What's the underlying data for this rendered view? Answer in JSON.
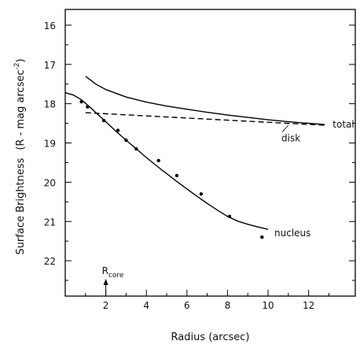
{
  "chart_data": {
    "type": "line",
    "title": "",
    "xlabel": "Radius (arcsec)",
    "ylabel": "Surface Brightness",
    "ylabel_units": "(R - mag arcsec",
    "ylabel_units_sup": "-2",
    "ylabel_units_close": ")",
    "xlim": [
      0,
      14.3
    ],
    "ylim": [
      22.9,
      15.6
    ],
    "y_inverted": true,
    "grid": false,
    "x_ticks": [
      2,
      4,
      6,
      8,
      10,
      12
    ],
    "x_minor_ticks": [
      1,
      3,
      5,
      7,
      9,
      11,
      13
    ],
    "y_ticks": [
      16,
      17,
      18,
      19,
      20,
      21,
      22
    ],
    "y_minor_ticks": [
      16.5,
      17.5,
      18.5,
      19.5,
      20.5,
      21.5,
      22.5
    ],
    "series": [
      {
        "name": "total",
        "style": "solid",
        "x": [
          1.0,
          1.5,
          2.0,
          3.0,
          4.0,
          5.0,
          6.0,
          7.0,
          8.0,
          9.0,
          10.0,
          11.0,
          12.0,
          12.8
        ],
        "y": [
          17.3,
          17.5,
          17.64,
          17.83,
          17.96,
          18.06,
          18.14,
          18.22,
          18.29,
          18.35,
          18.41,
          18.46,
          18.5,
          18.53
        ]
      },
      {
        "name": "disk",
        "style": "dashed",
        "x": [
          1.0,
          12.8
        ],
        "y": [
          18.23,
          18.55
        ]
      },
      {
        "name": "nucleus",
        "style": "solid",
        "x": [
          0.0,
          0.4,
          0.8,
          1.2,
          1.6,
          2.0,
          2.5,
          3.0,
          3.5,
          4.0,
          4.5,
          5.0,
          5.5,
          6.0,
          6.5,
          7.0,
          7.5,
          8.0,
          8.5,
          9.0,
          9.5,
          10.0
        ],
        "y": [
          17.72,
          17.78,
          17.9,
          18.08,
          18.27,
          18.46,
          18.7,
          18.93,
          19.15,
          19.37,
          19.58,
          19.78,
          19.98,
          20.17,
          20.36,
          20.54,
          20.71,
          20.87,
          20.99,
          21.07,
          21.14,
          21.2
        ]
      }
    ],
    "points": {
      "x": [
        0.8,
        1.1,
        1.9,
        2.6,
        3.0,
        3.5,
        4.6,
        5.5,
        6.7,
        8.1,
        9.7
      ],
      "y": [
        17.95,
        18.08,
        18.43,
        18.68,
        18.93,
        19.15,
        19.45,
        19.83,
        20.3,
        20.87,
        21.4
      ]
    },
    "annotations": {
      "total": "total",
      "disk": "disk",
      "nucleus": "nucleus",
      "rcore_main": "R",
      "rcore_sub": "core",
      "rcore_x": 2.0
    }
  }
}
